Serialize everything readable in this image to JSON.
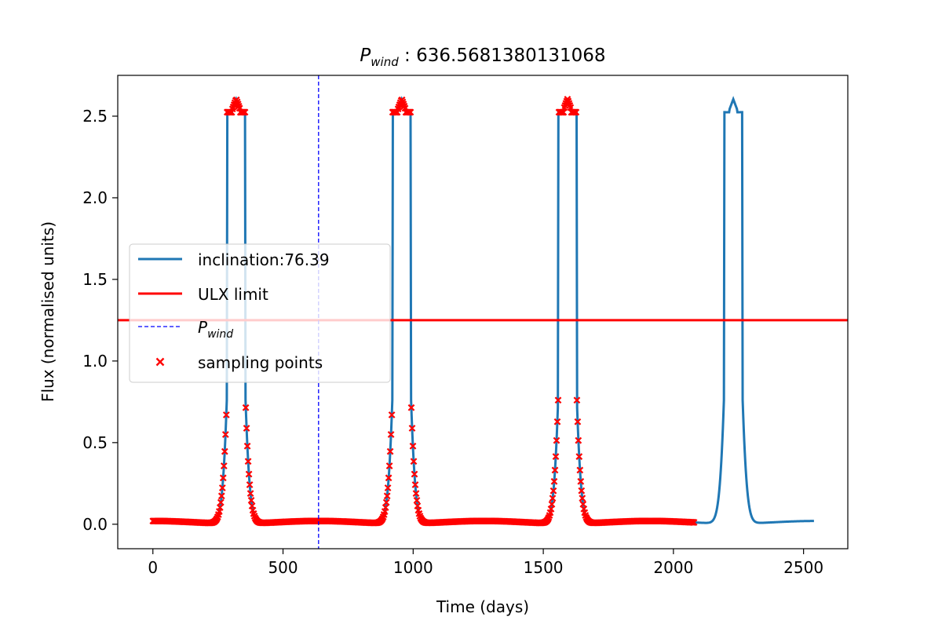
{
  "chart_data": {
    "type": "line",
    "title_symbol": "P",
    "title_subscript": "wind",
    "title_value": " : 636.5681380131068",
    "xlabel": "Time (days)",
    "ylabel": "Flux (normalised units)",
    "xlim": [
      -135,
      2670
    ],
    "ylim": [
      -0.15,
      2.75
    ],
    "xticks": [
      0,
      500,
      1000,
      1500,
      2000,
      2500
    ],
    "yticks": [
      0.0,
      0.5,
      1.0,
      1.5,
      2.0,
      2.5
    ],
    "xtick_labels": [
      "0",
      "500",
      "1000",
      "1500",
      "2000",
      "2500"
    ],
    "ytick_labels": [
      "0.0",
      "0.5",
      "1.0",
      "1.5",
      "2.0",
      "2.5"
    ],
    "ulx_limit": 1.25,
    "p_wind": 636.5681380131068,
    "sampling_end": 2080,
    "period": 636.5681380131068,
    "peak_centers": [
      320,
      956,
      1593,
      2230
    ],
    "curve_max": 2.6,
    "legend_position": "center-left",
    "colors": {
      "curve": "#1f77b4",
      "ulx": "#ff0000",
      "pwind": "#0000ff",
      "samples": "#ff0000"
    },
    "series": [
      {
        "name": "inclination:76.39",
        "style": "line"
      },
      {
        "name": "ULX limit",
        "style": "hline"
      },
      {
        "name_symbol": "P",
        "name_subscript": "wind",
        "style": "dashed vline"
      },
      {
        "name": "sampling points",
        "style": "x markers"
      }
    ]
  }
}
